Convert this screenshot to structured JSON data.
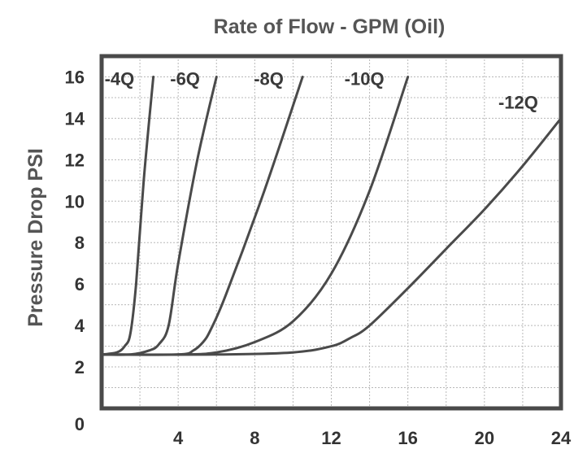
{
  "chart_data": {
    "type": "line",
    "title": "Rate of Flow - GPM (Oil)",
    "xlabel": "",
    "ylabel": "Pressure Drop PSI",
    "xlim": [
      0,
      24
    ],
    "ylim": [
      0,
      17
    ],
    "x_ticks": [
      4,
      8,
      12,
      16,
      20,
      24
    ],
    "y_ticks": [
      0,
      2,
      4,
      6,
      8,
      10,
      12,
      14,
      16
    ],
    "grid": true,
    "series": [
      {
        "name": "-4Q",
        "x": [
          0,
          0.8,
          1.2,
          1.5,
          1.8,
          2.2,
          2.7
        ],
        "y": [
          2.6,
          2.7,
          3.0,
          3.6,
          6.0,
          11.0,
          16.0
        ]
      },
      {
        "name": "-6Q",
        "x": [
          0,
          1.5,
          2.5,
          3.0,
          3.5,
          4.0,
          5.0,
          6.0
        ],
        "y": [
          2.6,
          2.6,
          2.8,
          3.1,
          4.0,
          7.0,
          12.0,
          16.0
        ]
      },
      {
        "name": "-8Q",
        "x": [
          0,
          4.0,
          4.8,
          5.3,
          5.7,
          6.5,
          8.5,
          10.5
        ],
        "y": [
          2.6,
          2.6,
          2.8,
          3.2,
          3.8,
          5.5,
          10.5,
          16.0
        ]
      },
      {
        "name": "-10Q",
        "x": [
          0,
          4.0,
          6.0,
          8.0,
          10.0,
          12.0,
          14.0,
          16.0
        ],
        "y": [
          2.6,
          2.6,
          2.7,
          3.2,
          4.2,
          6.5,
          10.5,
          16.0
        ]
      },
      {
        "name": "-12Q",
        "x": [
          0,
          6.0,
          10.0,
          12.0,
          13.0,
          14.0,
          16.0,
          18.0,
          20.0,
          22.0,
          24.0
        ],
        "y": [
          2.6,
          2.6,
          2.7,
          3.0,
          3.4,
          4.0,
          5.8,
          7.7,
          9.6,
          11.7,
          14.0
        ]
      }
    ]
  }
}
